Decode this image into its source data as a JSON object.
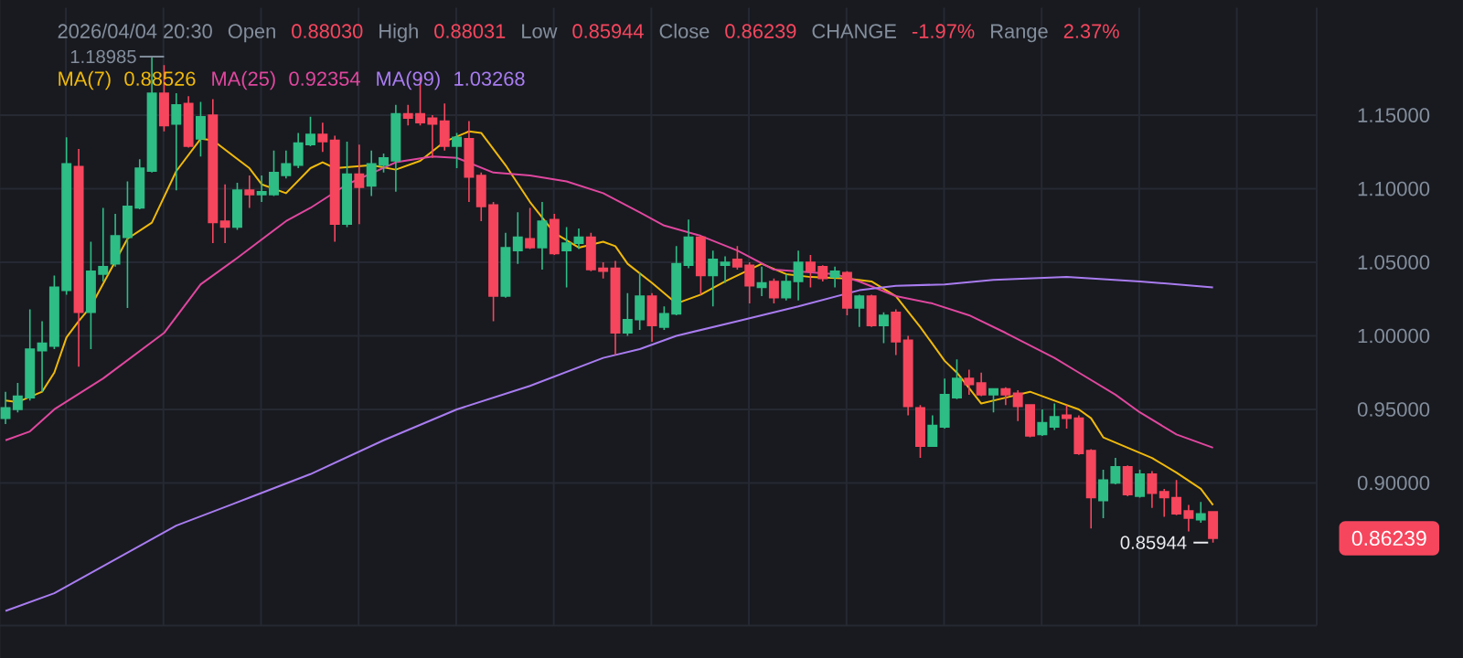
{
  "chart_data": {
    "type": "candlestick",
    "categories": [
      null,
      null,
      null,
      null,
      null,
      null,
      null,
      null,
      null,
      null,
      null,
      null,
      null,
      null,
      null,
      null,
      null,
      null,
      null,
      null,
      null,
      null,
      null,
      null,
      null,
      null,
      null,
      null,
      null,
      null,
      null,
      null,
      null,
      null,
      null,
      null,
      null,
      null,
      null,
      null,
      null,
      null,
      null,
      null,
      null,
      null,
      null,
      null,
      null,
      null,
      null,
      null,
      null,
      null,
      null,
      null,
      null,
      null,
      null,
      null,
      null,
      null,
      null,
      null,
      null,
      null,
      null,
      null,
      null,
      null,
      null,
      null,
      null,
      null,
      null,
      null,
      null,
      null,
      null,
      null,
      null,
      null,
      null,
      null,
      null,
      null,
      null,
      null,
      null,
      null,
      null,
      null,
      null,
      null,
      null,
      null,
      null,
      null,
      null,
      null
    ],
    "ohlc": [
      [
        0.944,
        0.962,
        0.94,
        0.951
      ],
      [
        0.95,
        0.968,
        0.948,
        0.959
      ],
      [
        0.958,
        1.018,
        0.956,
        0.991
      ],
      [
        0.99,
        1.01,
        0.962,
        0.995
      ],
      [
        0.993,
        1.041,
        0.991,
        1.033
      ],
      [
        1.031,
        1.135,
        1.028,
        1.117
      ],
      [
        1.115,
        1.127,
        0.979,
        1.016
      ],
      [
        1.016,
        1.064,
        0.991,
        1.044
      ],
      [
        1.042,
        1.087,
        1.037,
        1.047
      ],
      [
        1.049,
        1.083,
        1.047,
        1.068
      ],
      [
        1.067,
        1.105,
        1.019,
        1.088
      ],
      [
        1.087,
        1.12,
        1.086,
        1.114
      ],
      [
        1.112,
        1.18985,
        1.111,
        1.165
      ],
      [
        1.165,
        1.184,
        1.139,
        1.143
      ],
      [
        1.144,
        1.165,
        1.099,
        1.157
      ],
      [
        1.158,
        1.163,
        1.128,
        1.129
      ],
      [
        1.134,
        1.159,
        1.122,
        1.149
      ],
      [
        1.15,
        1.161,
        1.063,
        1.077
      ],
      [
        1.078,
        1.103,
        1.063,
        1.074
      ],
      [
        1.074,
        1.104,
        1.072,
        1.099
      ],
      [
        1.099,
        1.109,
        1.087,
        1.096
      ],
      [
        1.096,
        1.109,
        1.091,
        1.098
      ],
      [
        1.096,
        1.126,
        1.095,
        1.111
      ],
      [
        1.109,
        1.126,
        1.107,
        1.117
      ],
      [
        1.116,
        1.138,
        1.114,
        1.131
      ],
      [
        1.13,
        1.149,
        1.129,
        1.137
      ],
      [
        1.137,
        1.145,
        1.125,
        1.132
      ],
      [
        1.133,
        1.136,
        1.064,
        1.076
      ],
      [
        1.076,
        1.132,
        1.074,
        1.11
      ],
      [
        1.11,
        1.13,
        1.076,
        1.101
      ],
      [
        1.102,
        1.126,
        1.095,
        1.117
      ],
      [
        1.116,
        1.124,
        1.111,
        1.121
      ],
      [
        1.119,
        1.157,
        1.098,
        1.151
      ],
      [
        1.151,
        1.157,
        1.143,
        1.148
      ],
      [
        1.151,
        1.176,
        1.143,
        1.145
      ],
      [
        1.148,
        1.15,
        1.121,
        1.144
      ],
      [
        1.146,
        1.158,
        1.126,
        1.129
      ],
      [
        1.129,
        1.138,
        1.114,
        1.135
      ],
      [
        1.134,
        1.146,
        1.091,
        1.108
      ],
      [
        1.109,
        1.111,
        1.078,
        1.088
      ],
      [
        1.089,
        1.091,
        1.01,
        1.027
      ],
      [
        1.027,
        1.07,
        1.026,
        1.06
      ],
      [
        1.058,
        1.084,
        1.049,
        1.067
      ],
      [
        1.066,
        1.087,
        1.059,
        1.06
      ],
      [
        1.06,
        1.091,
        1.045,
        1.078
      ],
      [
        1.079,
        1.083,
        1.055,
        1.056
      ],
      [
        1.058,
        1.074,
        1.033,
        1.063
      ],
      [
        1.063,
        1.073,
        1.059,
        1.067
      ],
      [
        1.067,
        1.07,
        1.044,
        1.045
      ],
      [
        1.046,
        1.05,
        1.039,
        1.044
      ],
      [
        1.046,
        1.051,
        0.987,
        1.002
      ],
      [
        1.002,
        1.029,
        1.0,
        1.011
      ],
      [
        1.011,
        1.043,
        1.004,
        1.027
      ],
      [
        1.027,
        1.029,
        0.996,
        1.007
      ],
      [
        1.006,
        1.02,
        1.004,
        1.015
      ],
      [
        1.015,
        1.061,
        1.014,
        1.049
      ],
      [
        1.048,
        1.079,
        1.046,
        1.067
      ],
      [
        1.067,
        1.068,
        1.028,
        1.041
      ],
      [
        1.041,
        1.058,
        1.02,
        1.052
      ],
      [
        1.048,
        1.054,
        1.036,
        1.05
      ],
      [
        1.052,
        1.061,
        1.045,
        1.047
      ],
      [
        1.048,
        1.05,
        1.022,
        1.034
      ],
      [
        1.033,
        1.047,
        1.027,
        1.036
      ],
      [
        1.037,
        1.039,
        1.022,
        1.026
      ],
      [
        1.026,
        1.042,
        1.024,
        1.037
      ],
      [
        1.037,
        1.058,
        1.024,
        1.05
      ],
      [
        1.05,
        1.055,
        1.033,
        1.044
      ],
      [
        1.047,
        1.048,
        1.037,
        1.039
      ],
      [
        1.04,
        1.047,
        1.033,
        1.044
      ],
      [
        1.043,
        1.044,
        1.014,
        1.019
      ],
      [
        1.019,
        1.028,
        1.006,
        1.027
      ],
      [
        1.027,
        1.028,
        1.006,
        1.007
      ],
      [
        1.007,
        1.016,
        0.995,
        1.014
      ],
      [
        1.016,
        1.018,
        0.987,
        0.996
      ],
      [
        0.997,
        1.0,
        0.946,
        0.952
      ],
      [
        0.951,
        0.953,
        0.917,
        0.925
      ],
      [
        0.925,
        0.946,
        0.925,
        0.939
      ],
      [
        0.938,
        0.971,
        0.937,
        0.96
      ],
      [
        0.958,
        0.984,
        0.957,
        0.971
      ],
      [
        0.971,
        0.977,
        0.96,
        0.967
      ],
      [
        0.968,
        0.975,
        0.959,
        0.96
      ],
      [
        0.96,
        0.964,
        0.948,
        0.964
      ],
      [
        0.964,
        0.965,
        0.953,
        0.96
      ],
      [
        0.961,
        0.963,
        0.942,
        0.952
      ],
      [
        0.953,
        0.953,
        0.931,
        0.932
      ],
      [
        0.933,
        0.95,
        0.932,
        0.941
      ],
      [
        0.938,
        0.954,
        0.936,
        0.945
      ],
      [
        0.946,
        0.953,
        0.937,
        0.944
      ],
      [
        0.944,
        0.946,
        0.919,
        0.92
      ],
      [
        0.922,
        0.923,
        0.869,
        0.89
      ],
      [
        0.888,
        0.909,
        0.876,
        0.902
      ],
      [
        0.9,
        0.917,
        0.899,
        0.911
      ],
      [
        0.911,
        0.912,
        0.891,
        0.892
      ],
      [
        0.891,
        0.909,
        0.89,
        0.906
      ],
      [
        0.906,
        0.908,
        0.883,
        0.893
      ],
      [
        0.894,
        0.896,
        0.877,
        0.89
      ],
      [
        0.89,
        0.902,
        0.878,
        0.879
      ],
      [
        0.881,
        0.885,
        0.867,
        0.876
      ],
      [
        0.875,
        0.887,
        0.873,
        0.879
      ],
      [
        0.8803,
        0.88031,
        0.85944,
        0.86239
      ]
    ],
    "series": [
      {
        "name": "MA(7)",
        "type": "line",
        "color": "#f0b90b",
        "values": [
          0.956,
          0.955,
          null,
          0.962,
          0.975,
          0.999,
          1.01,
          1.02,
          null,
          null,
          1.066,
          null,
          1.077,
          null,
          1.112,
          null,
          1.134,
          1.133,
          null,
          null,
          1.114,
          1.103,
          null,
          1.097,
          null,
          1.114,
          1.118,
          1.114,
          null,
          null,
          1.116,
          null,
          1.113,
          null,
          1.119,
          null,
          1.132,
          null,
          1.139,
          1.138,
          null,
          1.116,
          null,
          1.091,
          null,
          1.07,
          null,
          1.06,
          null,
          1.064,
          1.061,
          1.049,
          null,
          1.036,
          null,
          1.022,
          null,
          1.028,
          null,
          1.037,
          null,
          null,
          1.049,
          null,
          1.042,
          null,
          1.04,
          null,
          null,
          1.039,
          null,
          1.037,
          null,
          1.027,
          null,
          1.006,
          null,
          0.983,
          0.975,
          null,
          0.954,
          null,
          0.958,
          null,
          0.962,
          null,
          0.956,
          null,
          0.95,
          0.944,
          0.931,
          null,
          0.924,
          null,
          0.917,
          null,
          0.907,
          null,
          0.896,
          0.885
        ]
      },
      {
        "name": "MA(25)",
        "type": "line",
        "color": "#e0479e",
        "values": [
          0.929,
          null,
          0.935,
          null,
          0.95,
          null,
          null,
          null,
          0.971,
          null,
          null,
          null,
          null,
          1.002,
          null,
          null,
          1.035,
          null,
          null,
          1.053,
          null,
          null,
          null,
          1.078,
          null,
          1.087,
          null,
          null,
          1.103,
          null,
          null,
          null,
          1.118,
          null,
          null,
          1.122,
          null,
          1.121,
          null,
          null,
          1.111,
          null,
          null,
          1.109,
          null,
          null,
          1.105,
          null,
          null,
          1.097,
          null,
          null,
          1.084,
          null,
          1.075,
          null,
          null,
          1.068,
          null,
          null,
          1.058,
          null,
          null,
          1.045,
          null,
          null,
          null,
          null,
          1.042,
          null,
          1.037,
          null,
          null,
          1.027,
          null,
          null,
          1.022,
          null,
          null,
          1.014,
          null,
          null,
          1.002,
          null,
          null,
          null,
          0.985,
          null,
          0.975,
          null,
          null,
          0.96,
          null,
          0.948,
          null,
          null,
          0.933,
          null,
          null,
          0.924
        ]
      },
      {
        "name": "MA(99)",
        "type": "line",
        "color": "#a97cf0",
        "values": [
          0.813,
          null,
          null,
          null,
          0.825,
          null,
          null,
          null,
          null,
          0.848,
          null,
          null,
          null,
          null,
          0.871,
          null,
          null,
          null,
          null,
          null,
          0.89,
          null,
          null,
          null,
          null,
          0.906,
          null,
          null,
          null,
          null,
          null,
          0.929,
          null,
          null,
          null,
          null,
          null,
          0.95,
          null,
          null,
          null,
          null,
          null,
          0.966,
          null,
          null,
          null,
          null,
          null,
          0.985,
          null,
          null,
          0.991,
          null,
          null,
          1.0,
          null,
          null,
          null,
          null,
          1.01,
          null,
          null,
          null,
          null,
          1.02,
          null,
          null,
          null,
          null,
          1.031,
          null,
          null,
          1.034,
          null,
          null,
          null,
          1.035,
          null,
          null,
          null,
          1.038,
          null,
          null,
          null,
          null,
          null,
          1.04,
          null,
          null,
          null,
          null,
          null,
          1.037,
          null,
          null,
          null,
          null,
          null,
          1.033
        ]
      }
    ],
    "ylim": [
      0.803,
      1.223
    ],
    "yticks": [
      {
        "value": 0.9,
        "label": "0.90000"
      },
      {
        "value": 0.95,
        "label": "0.95000"
      },
      {
        "value": 1.0,
        "label": "1.00000"
      },
      {
        "value": 1.05,
        "label": "1.05000"
      },
      {
        "value": 1.1,
        "label": "1.10000"
      },
      {
        "value": 1.15,
        "label": "1.15000"
      }
    ],
    "grid": true,
    "legend": "top left",
    "tick_labels": "y",
    "annotations": [
      "2026/04/04 20:30",
      "Open",
      "0.88030",
      "High",
      "0.88031",
      "Low",
      "0.85944",
      "Close",
      "0.86239",
      "CHANGE",
      "-1.97%",
      "Range",
      "2.37%",
      "0.88526",
      "0.92354",
      "1.03268",
      "1.18985",
      "0.85944",
      "0.86239"
    ]
  }
}
